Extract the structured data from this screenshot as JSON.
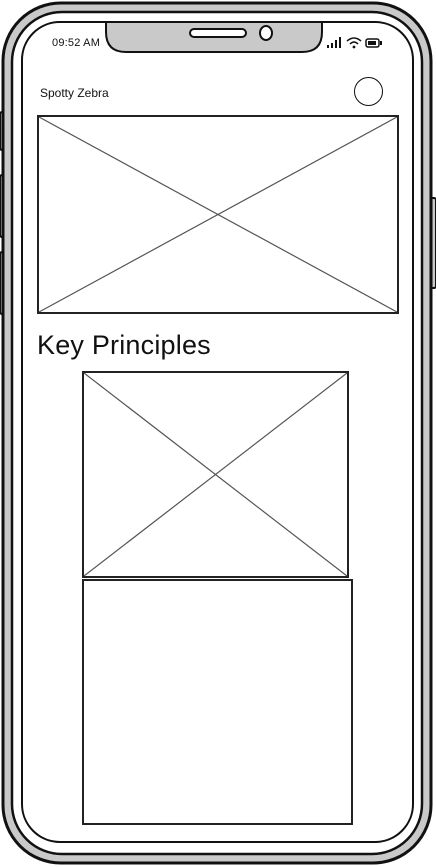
{
  "status_bar": {
    "time": "09:52 AM",
    "icons": [
      "signal-icon",
      "wifi-icon",
      "battery-icon"
    ]
  },
  "header": {
    "title": "Spotty Zebra",
    "avatar_icon": "user-avatar-circle"
  },
  "hero": {
    "image_icon": "image-placeholder-icon"
  },
  "section": {
    "heading": "Key Principles"
  },
  "principle": {
    "image_icon": "image-placeholder-icon"
  },
  "colors": {
    "stroke": "#111111",
    "frame_fill": "#c9c9c9",
    "screen_fill": "#ffffff",
    "placeholder_line": "#555555"
  }
}
